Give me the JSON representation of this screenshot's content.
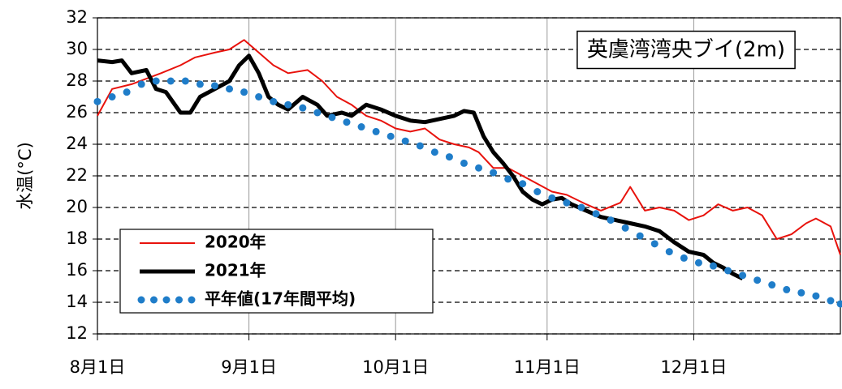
{
  "chart_data": {
    "type": "line",
    "annotation": "英虞湾湾央ブイ(2m)",
    "y_label": "水温(°C)",
    "xlim": [
      0,
      152
    ],
    "xticks": [
      {
        "value": 0,
        "label": "8月1日"
      },
      {
        "value": 31,
        "label": "9月1日"
      },
      {
        "value": 61,
        "label": "10月1日"
      },
      {
        "value": 92,
        "label": "11月1日"
      },
      {
        "value": 122,
        "label": "12月1日"
      }
    ],
    "ylim": [
      12,
      32
    ],
    "yticks": [
      12,
      14,
      16,
      18,
      20,
      22,
      24,
      26,
      28,
      30,
      32
    ],
    "grid": true,
    "legend": "lower left",
    "series": [
      {
        "name": "2020年",
        "color": "#e8120c",
        "style": "solid",
        "x": [
          0,
          3,
          7,
          13,
          17,
          20,
          24,
          27,
          30,
          33,
          36,
          39,
          43,
          46,
          49,
          52,
          55,
          58,
          61,
          64,
          67,
          70,
          73,
          76,
          78,
          81,
          84,
          87,
          90,
          93,
          96,
          100,
          103,
          107,
          109,
          112,
          115,
          118,
          121,
          124,
          127,
          130,
          133,
          136,
          139,
          142,
          145,
          147,
          150,
          152
        ],
        "values": [
          25.8,
          27.5,
          27.8,
          28.5,
          29,
          29.5,
          29.8,
          30,
          30.6,
          29.8,
          29,
          28.5,
          28.7,
          28,
          27,
          26.5,
          25.8,
          25.5,
          25,
          24.8,
          25,
          24.3,
          24,
          23.8,
          23.5,
          22.5,
          22.5,
          22,
          21.5,
          21,
          20.8,
          20.2,
          19.8,
          20.3,
          21.3,
          19.8,
          20,
          19.8,
          19.2,
          19.5,
          20.2,
          19.8,
          20,
          19.5,
          18,
          18.3,
          19,
          19.3,
          18.8,
          17
        ]
      },
      {
        "name": "2021年",
        "color": "#000000",
        "style": "thick",
        "x": [
          0,
          3,
          5,
          7,
          10,
          12,
          14,
          17,
          19,
          21,
          24,
          27,
          29,
          31,
          33,
          35,
          37,
          39,
          42,
          45,
          47,
          50,
          52,
          55,
          58,
          61,
          64,
          67,
          70,
          73,
          75,
          77,
          79,
          81,
          83,
          85,
          87,
          89,
          91,
          93,
          95,
          97,
          100,
          103,
          106,
          109,
          112,
          115,
          118,
          121,
          124,
          126,
          128,
          130,
          132
        ],
        "values": [
          29.3,
          29.2,
          29.3,
          28.5,
          28.7,
          27.5,
          27.3,
          26,
          26,
          27,
          27.5,
          28,
          29,
          29.6,
          28.5,
          27,
          26.5,
          26.2,
          27,
          26.5,
          25.8,
          26,
          25.8,
          26.5,
          26.2,
          25.8,
          25.5,
          25.4,
          25.6,
          25.8,
          26.1,
          26,
          24.5,
          23.5,
          22.8,
          22,
          21,
          20.5,
          20.2,
          20.5,
          20.6,
          20.2,
          19.8,
          19.4,
          19.2,
          19,
          18.8,
          18.5,
          17.8,
          17.2,
          17,
          16.5,
          16.2,
          15.8,
          15.5
        ]
      },
      {
        "name": "平年値(17年間平均)",
        "color": "#1f7dc9",
        "style": "dots",
        "x": [
          0,
          3,
          6,
          9,
          12,
          15,
          18,
          21,
          24,
          27,
          30,
          33,
          36,
          39,
          42,
          45,
          48,
          51,
          54,
          57,
          60,
          63,
          66,
          69,
          72,
          75,
          78,
          81,
          84,
          87,
          90,
          93,
          96,
          99,
          102,
          105,
          108,
          111,
          114,
          117,
          120,
          123,
          126,
          129,
          132,
          135,
          138,
          141,
          144,
          147,
          150,
          152
        ],
        "values": [
          26.7,
          27,
          27.3,
          27.8,
          28,
          28,
          28,
          27.8,
          27.7,
          27.5,
          27.3,
          27,
          26.7,
          26.5,
          26.3,
          26,
          25.7,
          25.4,
          25.1,
          24.8,
          24.5,
          24.2,
          23.9,
          23.5,
          23.2,
          22.8,
          22.5,
          22.2,
          21.8,
          21.5,
          21,
          20.6,
          20.3,
          20,
          19.6,
          19.2,
          18.7,
          18.2,
          17.7,
          17.2,
          16.8,
          16.5,
          16.3,
          16,
          15.7,
          15.4,
          15.1,
          14.8,
          14.6,
          14.4,
          14.1,
          13.9
        ]
      }
    ]
  }
}
